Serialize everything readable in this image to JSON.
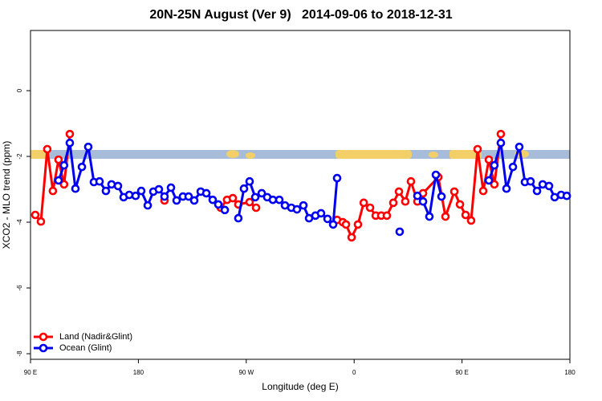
{
  "chart_data": {
    "type": "line",
    "title": "20N-25N August (Ver 9)   2014-09-06 to 2018-12-31",
    "x_label": "Longitude (deg E)",
    "y_label": "XCO2 - MLO trend (ppm)",
    "xlim": [
      90,
      540
    ],
    "ylim": [
      -8.17,
      1.83
    ],
    "xticks": [
      {
        "value": 90,
        "label": "90 E"
      },
      {
        "value": 180,
        "label": "180"
      },
      {
        "value": 270,
        "label": "90 W"
      },
      {
        "value": 360,
        "label": "0"
      },
      {
        "value": 450,
        "label": "90 E"
      },
      {
        "value": 540,
        "label": "180"
      }
    ],
    "yticks": [
      0,
      -2,
      -4,
      -6,
      -8
    ],
    "legend_position": "bottom-left",
    "series": [
      {
        "name": "Land (Nadir&Glint)",
        "color": "#ff0000",
        "x": [
          94,
          98.7,
          104,
          108.7,
          113.4,
          118,
          122.8,
          null,
          201.8,
          null,
          248.7,
          254,
          258.8,
          263.4,
          272.8,
          278.2,
          null,
          345.8,
          350.5,
          353.2,
          357.9,
          363.2,
          368,
          373.3,
          378,
          382.6,
          387.3,
          392.7,
          397.4,
          402.7,
          407.4,
          412.8,
          417.5,
          430.2,
          436.2,
          443.6,
          448.3,
          453,
          457.6,
          463,
          467.7,
          472.4,
          477,
          482.4
        ],
        "values": [
          -3.78,
          -3.98,
          -1.78,
          -3.05,
          -2.1,
          -2.85,
          -1.32,
          null,
          -3.34,
          null,
          -3.56,
          -3.32,
          -3.27,
          -3.46,
          -3.39,
          -3.56,
          null,
          -3.93,
          -4.0,
          -4.07,
          -4.46,
          -4.07,
          -3.41,
          -3.56,
          -3.8,
          -3.8,
          -3.8,
          -3.41,
          -3.07,
          -3.37,
          -2.76,
          -3.37,
          -3.12,
          -2.63,
          -3.83,
          -3.07,
          -3.46,
          -3.78,
          -3.95,
          -1.78,
          -3.05,
          -2.1,
          -2.85,
          -1.32
        ]
      },
      {
        "name": "Ocean (Glint)",
        "color": "#0000ee",
        "x": [
          113.4,
          118,
          122.8,
          127.5,
          132.9,
          138.2,
          142.9,
          147.6,
          152.9,
          157.6,
          163,
          167.7,
          172.4,
          177.7,
          182.4,
          187.8,
          192.5,
          197.1,
          201.8,
          207.2,
          211.9,
          217.2,
          221.9,
          226.6,
          232,
          236.7,
          242,
          246.7,
          252.1,
          null,
          263.4,
          268.1,
          272.8,
          277.5,
          282.9,
          287.5,
          292.2,
          297.6,
          302.3,
          307.6,
          312.3,
          317.7,
          322.4,
          327.7,
          332.4,
          337.8,
          342.5,
          345.8,
          null,
          398,
          null,
          412.8,
          417.5,
          422.8,
          428.2,
          432.9,
          null,
          472.4,
          477,
          482.4,
          487.1,
          492.5,
          497.8,
          502.5,
          507.2,
          512.6,
          517.3,
          522.6,
          527.3,
          532.7,
          537.4
        ],
        "values": [
          -2.73,
          -2.27,
          -1.59,
          -2.98,
          -2.32,
          -1.71,
          -2.78,
          -2.76,
          -3.05,
          -2.85,
          -2.9,
          -3.24,
          -3.17,
          -3.2,
          -3.05,
          -3.49,
          -3.07,
          -3.0,
          -3.22,
          -2.95,
          -3.34,
          -3.22,
          -3.22,
          -3.34,
          -3.07,
          -3.12,
          -3.32,
          -3.46,
          -3.63,
          null,
          -3.88,
          -2.98,
          -2.76,
          -3.24,
          -3.12,
          -3.24,
          -3.32,
          -3.32,
          -3.49,
          -3.56,
          -3.61,
          -3.49,
          -3.88,
          -3.8,
          -3.73,
          -3.9,
          -4.07,
          -2.66,
          null,
          -4.29,
          null,
          -3.2,
          -3.37,
          -3.83,
          -2.56,
          -3.22,
          null,
          -2.73,
          -2.27,
          -1.59,
          -2.98,
          -2.32,
          -1.71,
          -2.78,
          -2.76,
          -3.05,
          -2.85,
          -2.9,
          -3.24,
          -3.17,
          -3.2
        ]
      }
    ]
  }
}
